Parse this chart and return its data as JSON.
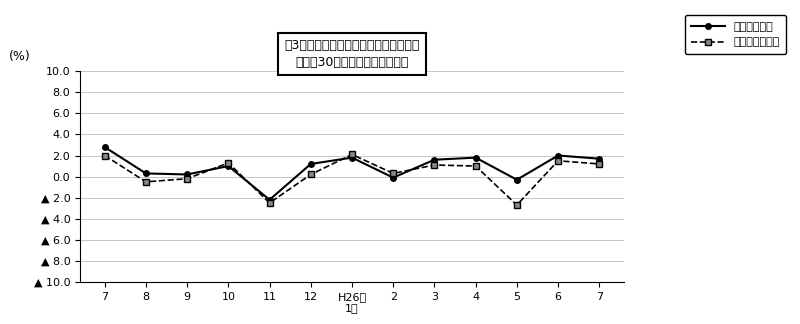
{
  "x_labels": [
    "7",
    "8",
    "9",
    "10",
    "11",
    "12",
    "H26年\n1月",
    "2",
    "3",
    "4",
    "5",
    "6",
    "7"
  ],
  "total_hours": [
    2.8,
    0.3,
    0.2,
    1.0,
    -2.2,
    1.2,
    1.8,
    -0.1,
    1.6,
    1.8,
    -0.3,
    2.0,
    1.7
  ],
  "scheduled_hours": [
    2.0,
    -0.5,
    -0.2,
    1.3,
    -2.5,
    0.2,
    2.1,
    0.3,
    1.1,
    1.0,
    -2.7,
    1.5,
    1.2
  ],
  "ylim": [
    -10.0,
    10.0
  ],
  "yticks": [
    10.0,
    8.0,
    6.0,
    4.0,
    2.0,
    0.0,
    -2.0,
    -4.0,
    -6.0,
    -8.0,
    -10.0
  ],
  "ytick_labels": [
    "10.0",
    "8.0",
    "6.0",
    "4.0",
    "2.0",
    "0.0",
    "▲ 2.0",
    "▲ 4.0",
    "▲ 6.0",
    "▲ 8.0",
    "▲ 10.0"
  ],
  "ylabel": "(%)",
  "title_line1": "図3　労働時間の推移（対前年同月比）",
  "title_line2": "－規樨30人以上－　調査産業計",
  "legend_total": "総実労働時間",
  "legend_scheduled": "所定内労働時間",
  "line_color": "#000000",
  "marker_gray": "#888888",
  "grid_color": "#bbbbbb",
  "bg_color": "#ffffff"
}
